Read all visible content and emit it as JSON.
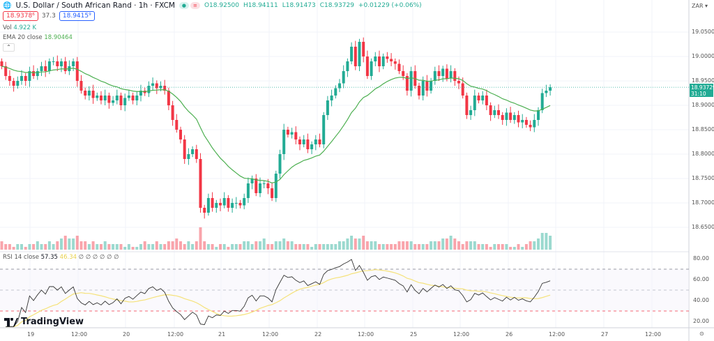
{
  "header": {
    "symbol": "U.S. Dollar / South African Rand · 1h · FXCM",
    "open": "O18.92500",
    "high": "H18.94111",
    "low": "L18.91473",
    "close": "C18.93729",
    "change": "+0.01229 (+0.06%)",
    "sell_price": "18.9378⁶",
    "spread": "37.3",
    "buy_price": "18.9415⁹"
  },
  "indicators": {
    "vol_label": "Vol",
    "vol_value": "4.922 K",
    "ema_label": "EMA 20 close",
    "ema_value": "18.90464",
    "rsi_label": "RSI 14 close",
    "rsi_value": "57.35",
    "rsi_ma_value": "46.34",
    "rsi_extra": "∅ ∅ ∅ ∅ ∅ ∅"
  },
  "price_axis": {
    "currency": "ZAR",
    "ticks": [
      "19.05000",
      "19.00000",
      "18.95000",
      "18.90000",
      "18.85000",
      "18.80000",
      "18.75000",
      "18.70000",
      "18.65000"
    ],
    "current_price": "18.93729",
    "countdown": "31:10"
  },
  "rsi_axis": {
    "ticks": [
      "80.00",
      "60.00",
      "40.00",
      "20.00"
    ]
  },
  "time_axis": {
    "ticks": [
      "19",
      "12:00",
      "20",
      "12:00",
      "21",
      "12:00",
      "22",
      "12:00",
      "25",
      "12:00",
      "26",
      "12:00",
      "27",
      "12:00"
    ]
  },
  "branding": "TradingView",
  "colors": {
    "up": "#22ab94",
    "down": "#f23645",
    "ema": "#4caf50",
    "rsi": "#333333",
    "rsi_ma": "#f5e27a"
  },
  "chart_data": {
    "type": "candlestick",
    "ylim": [
      18.62,
      19.07
    ],
    "rsi_levels": [
      70,
      50,
      30
    ],
    "close": [
      18.98,
      18.96,
      18.95,
      18.94,
      18.95,
      18.96,
      18.95,
      18.97,
      18.96,
      18.97,
      18.98,
      18.97,
      18.99,
      18.99,
      18.98,
      18.99,
      18.97,
      18.98,
      18.99,
      18.95,
      18.93,
      18.92,
      18.93,
      18.915,
      18.92,
      18.91,
      18.92,
      18.905,
      18.91,
      18.92,
      18.9,
      18.915,
      18.92,
      18.91,
      18.92,
      18.93,
      18.925,
      18.94,
      18.945,
      18.935,
      18.94,
      18.93,
      18.9,
      18.87,
      18.85,
      18.83,
      18.79,
      18.8,
      18.81,
      18.79,
      18.69,
      18.68,
      18.71,
      18.69,
      18.7,
      18.695,
      18.71,
      18.69,
      18.7,
      18.7,
      18.695,
      18.71,
      18.74,
      18.75,
      18.72,
      18.74,
      18.74,
      18.73,
      18.71,
      18.76,
      18.8,
      18.85,
      18.84,
      18.845,
      18.83,
      18.82,
      18.83,
      18.81,
      18.82,
      18.83,
      18.82,
      18.88,
      18.91,
      18.92,
      18.935,
      18.945,
      18.97,
      18.99,
      19.02,
      18.98,
      19.03,
      19.0,
      18.96,
      18.99,
      19.0,
      18.98,
      19.0,
      18.995,
      18.99,
      18.985,
      18.97,
      18.96,
      18.93,
      18.97,
      18.94,
      18.92,
      18.95,
      18.93,
      18.95,
      18.97,
      18.96,
      18.975,
      18.955,
      18.97,
      18.95,
      18.945,
      18.92,
      18.88,
      18.89,
      18.92,
      18.91,
      18.92,
      18.9,
      18.88,
      18.89,
      18.88,
      18.87,
      18.885,
      18.87,
      18.88,
      18.865,
      18.87,
      18.86,
      18.855,
      18.87,
      18.89,
      18.925,
      18.93,
      18.937
    ],
    "volume": [
      3,
      2,
      2,
      1,
      2,
      2,
      1,
      2,
      2,
      3,
      2,
      2,
      3,
      2,
      3,
      4,
      5,
      4,
      4,
      5,
      3,
      3,
      2,
      3,
      2,
      2,
      3,
      2,
      2,
      2,
      2,
      1,
      2,
      1,
      1,
      2,
      3,
      2,
      2,
      3,
      2,
      2,
      3,
      3,
      4,
      3,
      2,
      3,
      2,
      3,
      8,
      3,
      2,
      2,
      1,
      2,
      2,
      1,
      2,
      2,
      2,
      3,
      3,
      2,
      3,
      3,
      4,
      2,
      2,
      3,
      3,
      4,
      3,
      3,
      2,
      2,
      2,
      2,
      1,
      2,
      2,
      2,
      2,
      2,
      2,
      3,
      3,
      4,
      5,
      4,
      4,
      5,
      3,
      3,
      3,
      2,
      2,
      2,
      2,
      2,
      3,
      3,
      3,
      3,
      2,
      2,
      2,
      2,
      3,
      3,
      3,
      4,
      4,
      5,
      4,
      3,
      2,
      3,
      3,
      3,
      2,
      2,
      2,
      1,
      2,
      2,
      2,
      2,
      1,
      1,
      2,
      1,
      2,
      3,
      3,
      4,
      6,
      6,
      5
    ]
  }
}
